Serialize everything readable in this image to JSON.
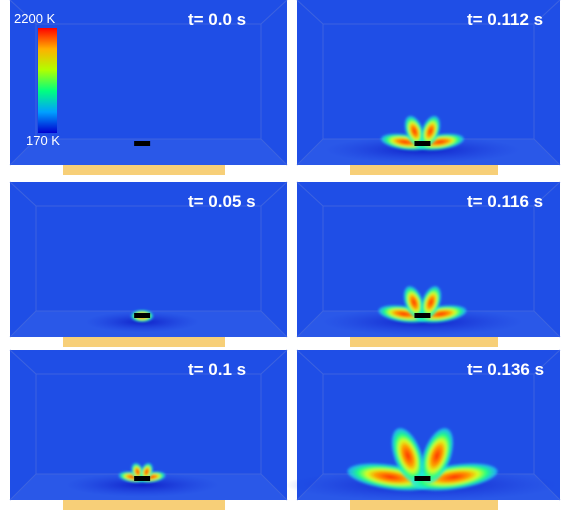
{
  "colorbar": {
    "max_label": "2200 K",
    "min_label": "170 K"
  },
  "panels": [
    {
      "time": "t= 0.0 s"
    },
    {
      "time": "t= 0.112 s"
    },
    {
      "time": "t= 0.05 s"
    },
    {
      "time": "t= 0.116 s"
    },
    {
      "time": "t= 0.1 s"
    },
    {
      "time": "t= 0.136 s"
    }
  ]
}
